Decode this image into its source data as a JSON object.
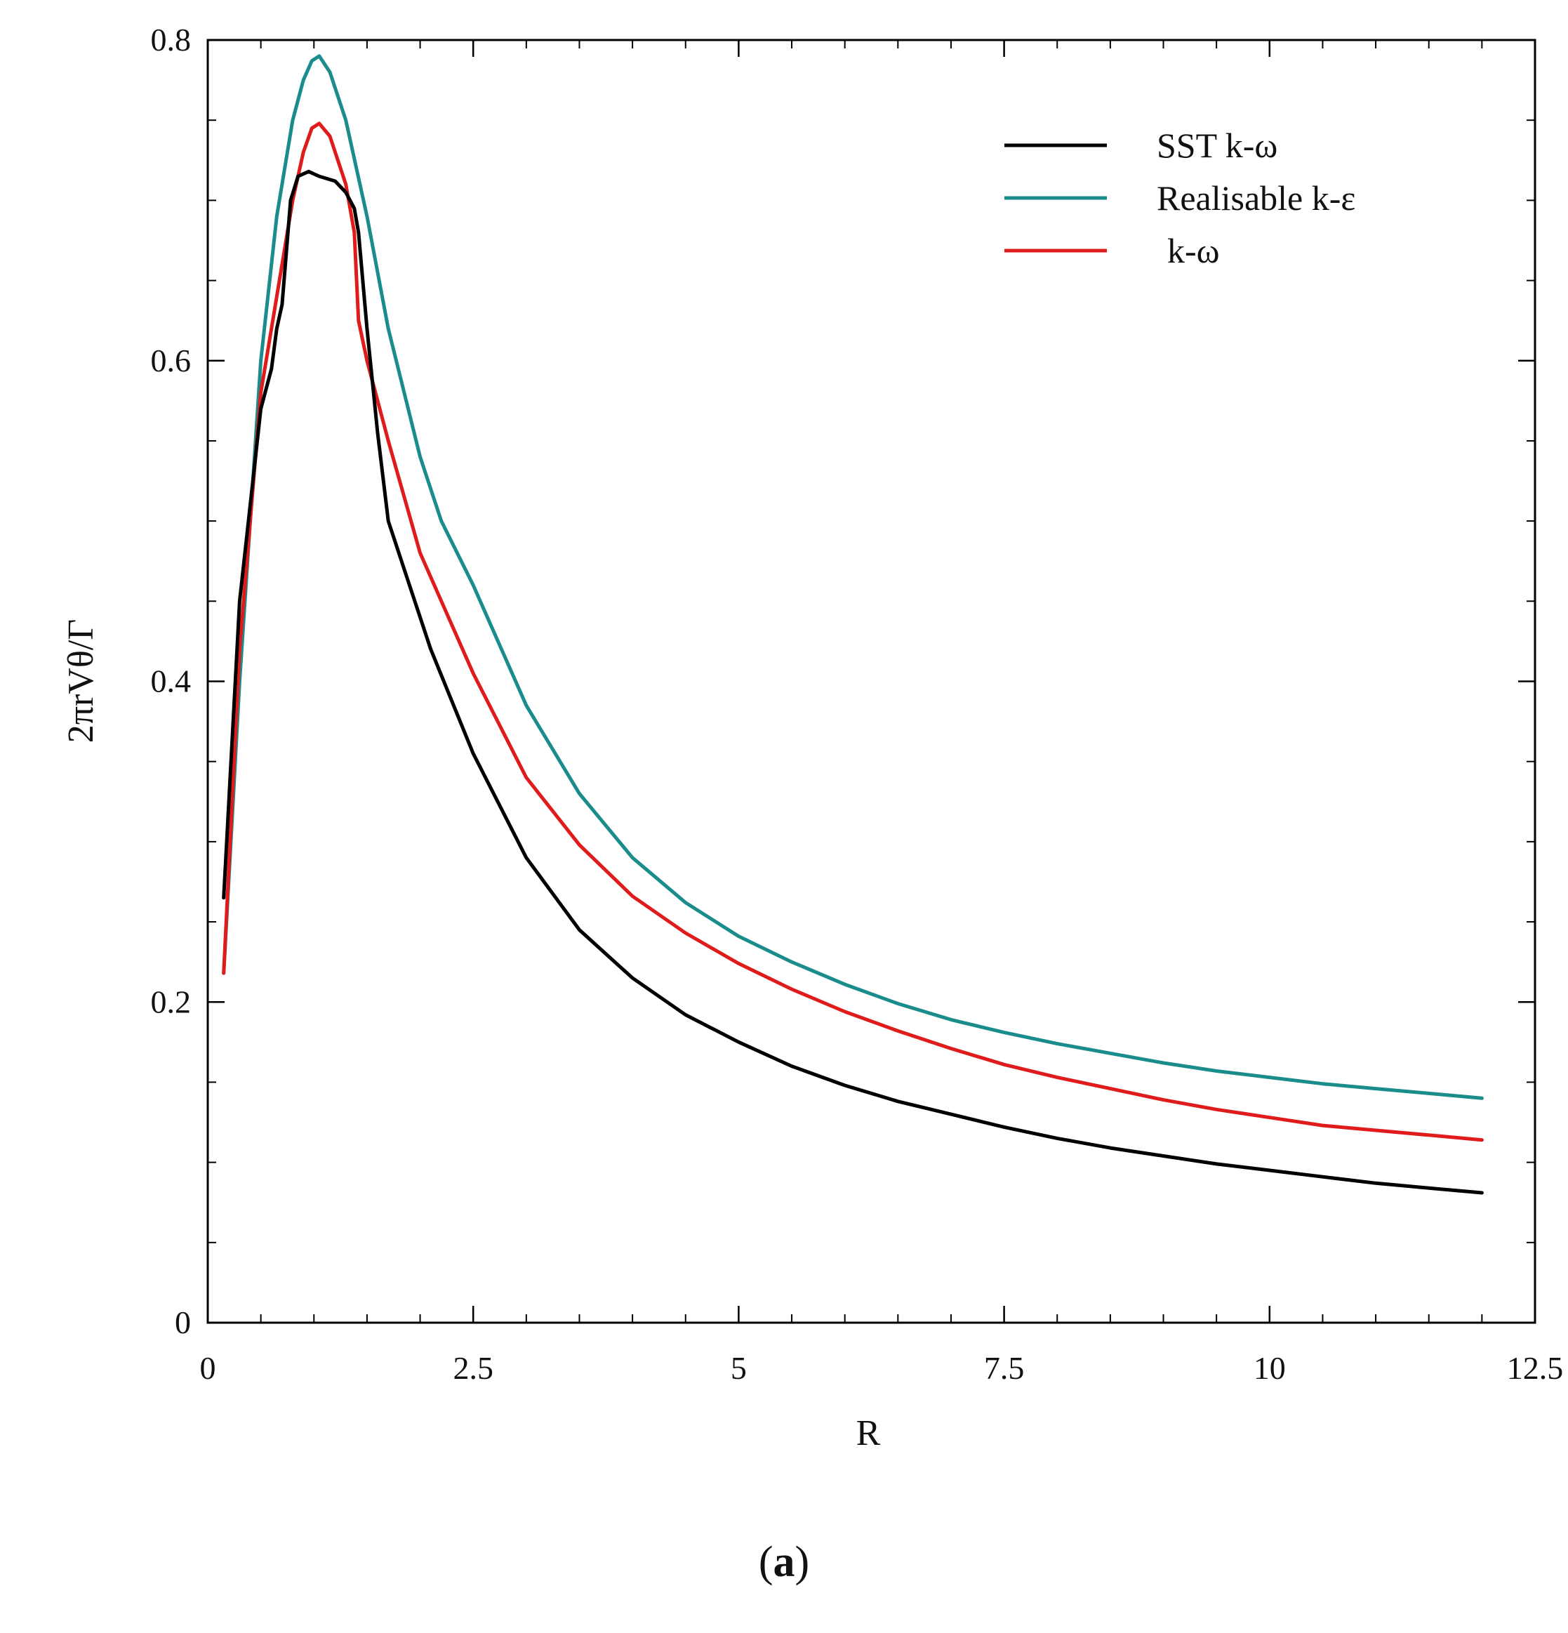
{
  "chart_data": {
    "type": "line",
    "title": "",
    "xlabel": "R",
    "ylabel": "2πrVθ/Γ",
    "xlim": [
      0,
      12.5
    ],
    "ylim": [
      0,
      0.8
    ],
    "x_ticks": [
      "0",
      "2.5",
      "5",
      "7.5",
      "10",
      "12.5"
    ],
    "x_tick_values": [
      0,
      2.5,
      5,
      7.5,
      10,
      12.5
    ],
    "y_ticks": [
      "0",
      "0.2",
      "0.4",
      "0.6",
      "0.8"
    ],
    "y_tick_values": [
      0,
      0.2,
      0.4,
      0.6,
      0.8
    ],
    "legend_position": "top-right",
    "grid": false,
    "series": [
      {
        "name": "SST k-ω",
        "color": "#000000",
        "x": [
          0.15,
          0.3,
          0.5,
          0.6,
          0.65,
          0.7,
          0.78,
          0.85,
          0.95,
          1.05,
          1.2,
          1.3,
          1.38,
          1.42,
          1.5,
          1.6,
          1.7,
          1.9,
          2.1,
          2.5,
          3.0,
          3.5,
          4.0,
          4.5,
          5.0,
          5.5,
          6.0,
          6.5,
          7.0,
          7.5,
          8.0,
          8.5,
          9.0,
          9.5,
          10.0,
          10.5,
          11.0,
          11.5,
          12.0
        ],
        "values": [
          0.265,
          0.45,
          0.57,
          0.595,
          0.62,
          0.635,
          0.7,
          0.715,
          0.718,
          0.715,
          0.712,
          0.705,
          0.695,
          0.68,
          0.62,
          0.555,
          0.5,
          0.46,
          0.42,
          0.355,
          0.29,
          0.245,
          0.215,
          0.192,
          0.175,
          0.16,
          0.148,
          0.138,
          0.13,
          0.122,
          0.115,
          0.109,
          0.104,
          0.099,
          0.095,
          0.091,
          0.087,
          0.084,
          0.081
        ]
      },
      {
        "name": "Realisable k-ε",
        "color": "#1a8c8c",
        "x": [
          0.15,
          0.3,
          0.5,
          0.65,
          0.8,
          0.9,
          0.98,
          1.05,
          1.15,
          1.3,
          1.5,
          1.7,
          2.0,
          2.2,
          2.5,
          3.0,
          3.5,
          4.0,
          4.5,
          5.0,
          5.5,
          6.0,
          6.5,
          7.0,
          7.5,
          8.0,
          8.5,
          9.0,
          9.5,
          10.0,
          10.5,
          11.0,
          11.5,
          12.0
        ],
        "values": [
          0.218,
          0.4,
          0.6,
          0.69,
          0.75,
          0.775,
          0.787,
          0.79,
          0.78,
          0.75,
          0.69,
          0.62,
          0.54,
          0.5,
          0.46,
          0.385,
          0.33,
          0.29,
          0.262,
          0.241,
          0.225,
          0.211,
          0.199,
          0.189,
          0.181,
          0.174,
          0.168,
          0.162,
          0.157,
          0.153,
          0.149,
          0.146,
          0.143,
          0.14
        ]
      },
      {
        "name": "k-ω",
        "color": "#e01b1b",
        "x": [
          0.15,
          0.3,
          0.5,
          0.65,
          0.8,
          0.9,
          0.98,
          1.05,
          1.15,
          1.3,
          1.38,
          1.42,
          1.5,
          1.7,
          2.0,
          2.5,
          3.0,
          3.5,
          4.0,
          4.5,
          5.0,
          5.5,
          6.0,
          6.5,
          7.0,
          7.5,
          8.0,
          8.5,
          9.0,
          9.5,
          10.0,
          10.5,
          11.0,
          11.5,
          12.0
        ],
        "values": [
          0.218,
          0.42,
          0.58,
          0.64,
          0.7,
          0.73,
          0.745,
          0.748,
          0.74,
          0.71,
          0.68,
          0.625,
          0.6,
          0.55,
          0.48,
          0.405,
          0.34,
          0.298,
          0.266,
          0.243,
          0.224,
          0.208,
          0.194,
          0.182,
          0.171,
          0.161,
          0.153,
          0.146,
          0.139,
          0.133,
          0.128,
          0.123,
          0.12,
          0.117,
          0.114
        ]
      }
    ]
  },
  "caption": {
    "open": "(",
    "letter": "a",
    "close": ")"
  }
}
